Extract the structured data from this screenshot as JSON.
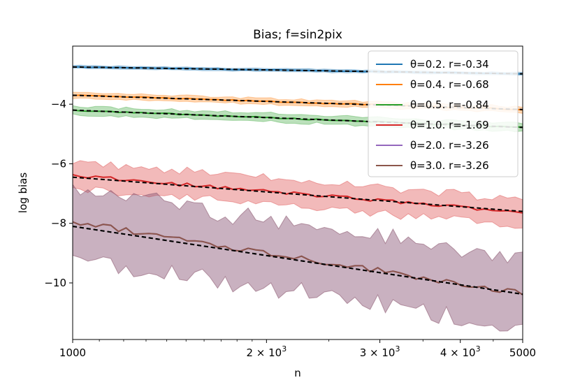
{
  "chart_data": {
    "type": "line",
    "title": "Bias;  f=sin2pix",
    "xlabel": "n",
    "ylabel": "log bias",
    "xscale": "log",
    "xlim": [
      1000,
      5000
    ],
    "ylim": [
      -11.9,
      -2.05
    ],
    "x_ticks": [
      {
        "value": 1000,
        "label": "1000"
      },
      {
        "value": 2000,
        "label": "2 × 10",
        "exp": "3"
      },
      {
        "value": 3000,
        "label": "3 × 10",
        "exp": "3"
      },
      {
        "value": 4000,
        "label": "4 × 10",
        "exp": "3"
      },
      {
        "value": 5000,
        "label": "5000"
      }
    ],
    "y_ticks": [
      {
        "value": -4,
        "label": "−4"
      },
      {
        "value": -6,
        "label": "−6"
      },
      {
        "value": -8,
        "label": "−8"
      },
      {
        "value": -10,
        "label": "−10"
      }
    ],
    "legend_position": "top-right",
    "series": [
      {
        "name": "θ=0.2. r=-0.34",
        "color": "#1f77b4",
        "start": -2.75,
        "end": -2.98,
        "band": 0.05,
        "noise": 0.01,
        "fit_start": -2.75,
        "fit_end": -2.98
      },
      {
        "name": "θ=0.4. r=-0.68",
        "color": "#ff7f0e",
        "start": -3.7,
        "end": -4.18,
        "band": 0.1,
        "noise": 0.02,
        "fit_start": -3.7,
        "fit_end": -4.18
      },
      {
        "name": "θ=0.5. r=-0.84",
        "color": "#2ca02c",
        "start": -4.2,
        "end": -4.78,
        "band": 0.14,
        "noise": 0.02,
        "fit_start": -4.2,
        "fit_end": -4.78
      },
      {
        "name": "θ=1.0. r=-1.69",
        "color": "#d62728",
        "start": -6.4,
        "end": -7.62,
        "band": 0.45,
        "noise": 0.06,
        "fit_start": -6.45,
        "fit_end": -7.6,
        "band_color": "#d62728"
      },
      {
        "name": "θ=2.0. r=-3.26",
        "color": "#9467bd",
        "start": -7.95,
        "end": -10.35,
        "band": 1.15,
        "noise": 0.1,
        "fit_start": -8.1,
        "fit_end": -10.38,
        "band_color": "#9467bd"
      },
      {
        "name": "θ=3.0. r=-3.26",
        "color": "#8c564b",
        "start": -7.95,
        "end": -10.35,
        "band": 1.15,
        "noise": 0.1,
        "fit_start": -8.1,
        "fit_end": -10.38,
        "band_color": "#8c564b"
      }
    ]
  }
}
